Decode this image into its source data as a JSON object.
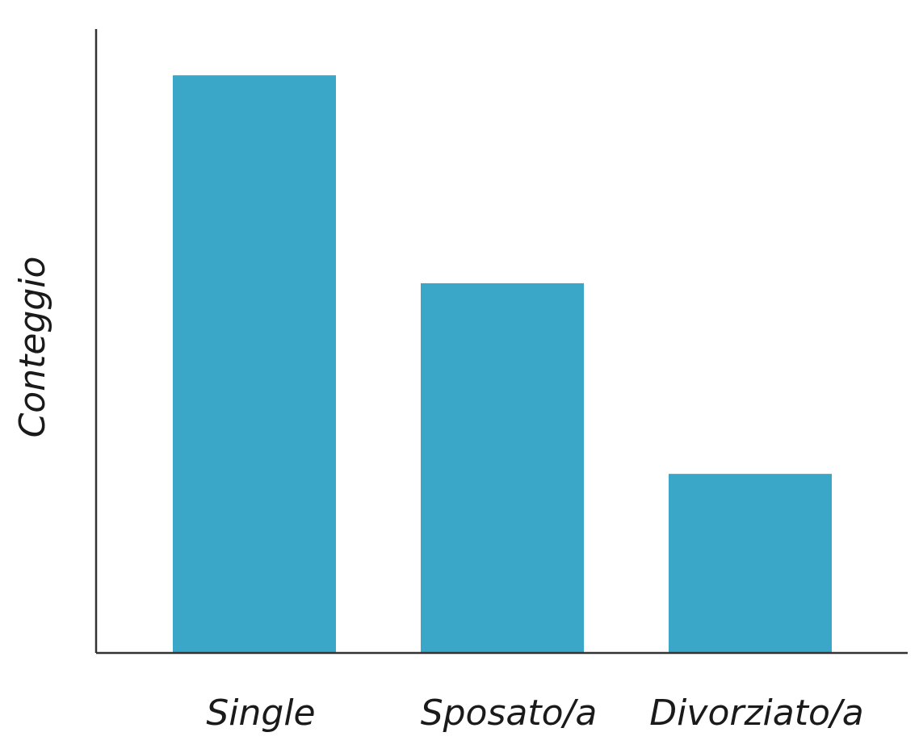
{
  "chart_data": {
    "type": "bar",
    "categories": [
      "Single",
      "Sposato/a",
      "Divorziato/a"
    ],
    "values": [
      100,
      64,
      31
    ],
    "title": "",
    "xlabel": "",
    "ylabel": "Conteggio",
    "ylim": [
      0,
      108
    ],
    "grid": false,
    "bar_color": "#3aa7c9",
    "axis_color": "#333333"
  }
}
